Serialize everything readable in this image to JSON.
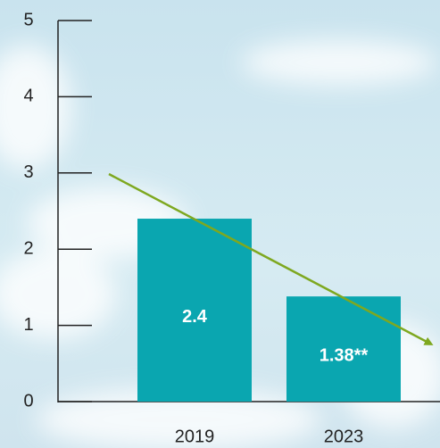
{
  "chart_data": {
    "type": "bar",
    "categories": [
      "2019",
      "2023"
    ],
    "values": [
      2.4,
      1.38
    ],
    "value_labels": [
      "2.4",
      "1.38**"
    ],
    "color": "#0aa6b0",
    "ylim": [
      0,
      5
    ],
    "yticks": [
      0,
      1,
      2,
      3,
      4,
      5
    ]
  }
}
